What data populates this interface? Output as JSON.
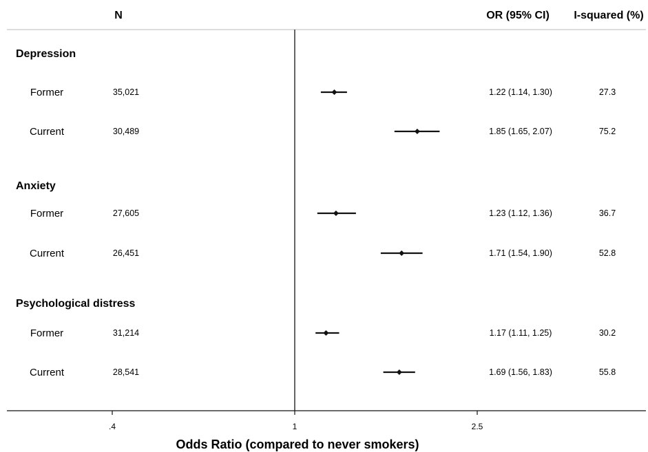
{
  "chart_data": {
    "type": "forest",
    "columns": {
      "n_header": "N",
      "or_header": "OR (95% CI)",
      "i2_header": "I-squared (%)"
    },
    "xlabel": "Odds Ratio (compared to never smokers)",
    "x_scale": "log",
    "reference_line": 1,
    "xticks": [
      {
        "value": 0.4,
        "label": ".4"
      },
      {
        "value": 1,
        "label": "1"
      },
      {
        "value": 2.5,
        "label": "2.5"
      }
    ],
    "groups": [
      {
        "name": "Depression",
        "rows": [
          {
            "label": "Former",
            "n": "35,021",
            "or": 1.22,
            "lo": 1.14,
            "hi": 1.3,
            "or_text": "1.22 (1.14, 1.30)",
            "i2": "27.3"
          },
          {
            "label": "Current",
            "n": "30,489",
            "or": 1.85,
            "lo": 1.65,
            "hi": 2.07,
            "or_text": "1.85 (1.65, 2.07)",
            "i2": "75.2"
          }
        ]
      },
      {
        "name": "Anxiety",
        "rows": [
          {
            "label": "Former",
            "n": "27,605",
            "or": 1.23,
            "lo": 1.12,
            "hi": 1.36,
            "or_text": "1.23 (1.12, 1.36)",
            "i2": "36.7"
          },
          {
            "label": "Current",
            "n": "26,451",
            "or": 1.71,
            "lo": 1.54,
            "hi": 1.9,
            "or_text": "1.71 (1.54, 1.90)",
            "i2": "52.8"
          }
        ]
      },
      {
        "name": "Psychological distress",
        "rows": [
          {
            "label": "Former",
            "n": "31,214",
            "or": 1.17,
            "lo": 1.11,
            "hi": 1.25,
            "or_text": "1.17 (1.11, 1.25)",
            "i2": "30.2"
          },
          {
            "label": "Current",
            "n": "28,541",
            "or": 1.69,
            "lo": 1.56,
            "hi": 1.83,
            "or_text": "1.69 (1.56, 1.83)",
            "i2": "55.8"
          }
        ]
      }
    ]
  }
}
